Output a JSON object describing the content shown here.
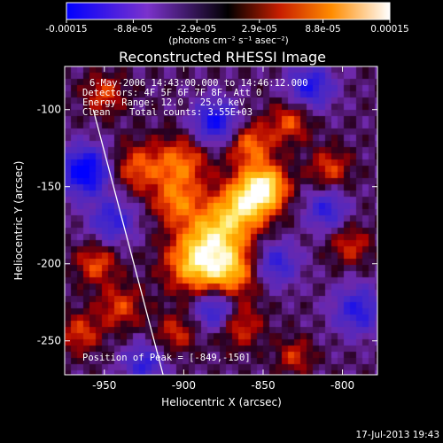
{
  "colorbar": {
    "tick_labels": [
      "-0.00015",
      "-8.8e-05",
      "-2.9e-05",
      "2.9e-05",
      "8.8e-05",
      "0.00015"
    ],
    "tick_values": [
      -0.00015,
      -8.8e-05,
      -2.9e-05,
      2.9e-05,
      8.8e-05,
      0.00015
    ],
    "units_label": "(photons cm⁻² s⁻¹ asec⁻²)"
  },
  "chart_data": {
    "type": "heatmap",
    "title": "Reconstructed RHESSI Image",
    "xlabel": "Heliocentric X (arcsec)",
    "ylabel": "Heliocentric Y (arcsec)",
    "xlim": [
      -975,
      -778
    ],
    "ylim": [
      -272,
      -72
    ],
    "xticks": [
      -950,
      -900,
      -850,
      -800
    ],
    "yticks": [
      -250,
      -200,
      -150,
      -100
    ],
    "xtick_labels": [
      "-950",
      "-900",
      "-850",
      "-800"
    ],
    "ytick_labels": [
      "-250",
      "-200",
      "-150",
      "-100"
    ],
    "value_range": [
      -0.00015,
      0.00015
    ],
    "annotations": [
      "6-May-2006 14:43:00.000 to 14:46:12.000",
      "Detectors: 4F 5F 6F 7F 8F, Att 0",
      "Energy Range: 12.0 - 25.0 keV",
      "Clean",
      "Total counts: 3.55E+03"
    ],
    "peak_label": "Position of Peak = [-849,-150]",
    "peak": [
      -849,
      -150
    ],
    "limb_line": [
      [
        -957,
        -100
      ],
      [
        -913,
        -272
      ]
    ],
    "timestamp": "17-Jul-2013 19:43",
    "bright_sources": [
      {
        "x": -849,
        "y": -150,
        "amp": 1.0,
        "r": 10
      },
      {
        "x": -862,
        "y": -162,
        "amp": 0.8,
        "r": 12
      },
      {
        "x": -880,
        "y": -180,
        "amp": 0.75,
        "r": 14
      },
      {
        "x": -893,
        "y": -200,
        "amp": 0.8,
        "r": 13
      },
      {
        "x": -870,
        "y": -205,
        "amp": 0.7,
        "r": 12
      },
      {
        "x": -902,
        "y": -135,
        "amp": 0.6,
        "r": 12
      },
      {
        "x": -930,
        "y": -138,
        "amp": 0.5,
        "r": 11
      },
      {
        "x": -905,
        "y": -160,
        "amp": 0.55,
        "r": 10
      },
      {
        "x": -858,
        "y": -123,
        "amp": 0.6,
        "r": 10
      },
      {
        "x": -940,
        "y": -228,
        "amp": 0.45,
        "r": 10
      },
      {
        "x": -955,
        "y": -200,
        "amp": 0.5,
        "r": 9
      },
      {
        "x": -833,
        "y": -108,
        "amp": 0.5,
        "r": 9
      },
      {
        "x": -808,
        "y": -138,
        "amp": 0.45,
        "r": 9
      },
      {
        "x": -795,
        "y": -188,
        "amp": 0.4,
        "r": 9
      },
      {
        "x": -865,
        "y": -240,
        "amp": 0.45,
        "r": 10
      },
      {
        "x": -905,
        "y": -245,
        "amp": 0.4,
        "r": 9
      },
      {
        "x": -965,
        "y": -245,
        "amp": 0.45,
        "r": 9
      },
      {
        "x": -830,
        "y": -260,
        "amp": 0.4,
        "r": 8
      },
      {
        "x": -950,
        "y": -90,
        "amp": 0.45,
        "r": 9
      }
    ],
    "dark_sources": [
      {
        "x": -962,
        "y": -140,
        "amp": 1.0,
        "r": 11
      },
      {
        "x": -880,
        "y": -108,
        "amp": 0.8,
        "r": 10
      },
      {
        "x": -820,
        "y": -85,
        "amp": 0.7,
        "r": 10
      },
      {
        "x": -842,
        "y": -200,
        "amp": 0.6,
        "r": 10
      },
      {
        "x": -945,
        "y": -172,
        "amp": 0.6,
        "r": 10
      },
      {
        "x": -880,
        "y": -230,
        "amp": 0.7,
        "r": 9
      },
      {
        "x": -790,
        "y": -230,
        "amp": 0.65,
        "r": 11
      },
      {
        "x": -925,
        "y": -265,
        "amp": 0.6,
        "r": 9
      },
      {
        "x": -810,
        "y": -165,
        "amp": 0.6,
        "r": 9
      }
    ]
  }
}
